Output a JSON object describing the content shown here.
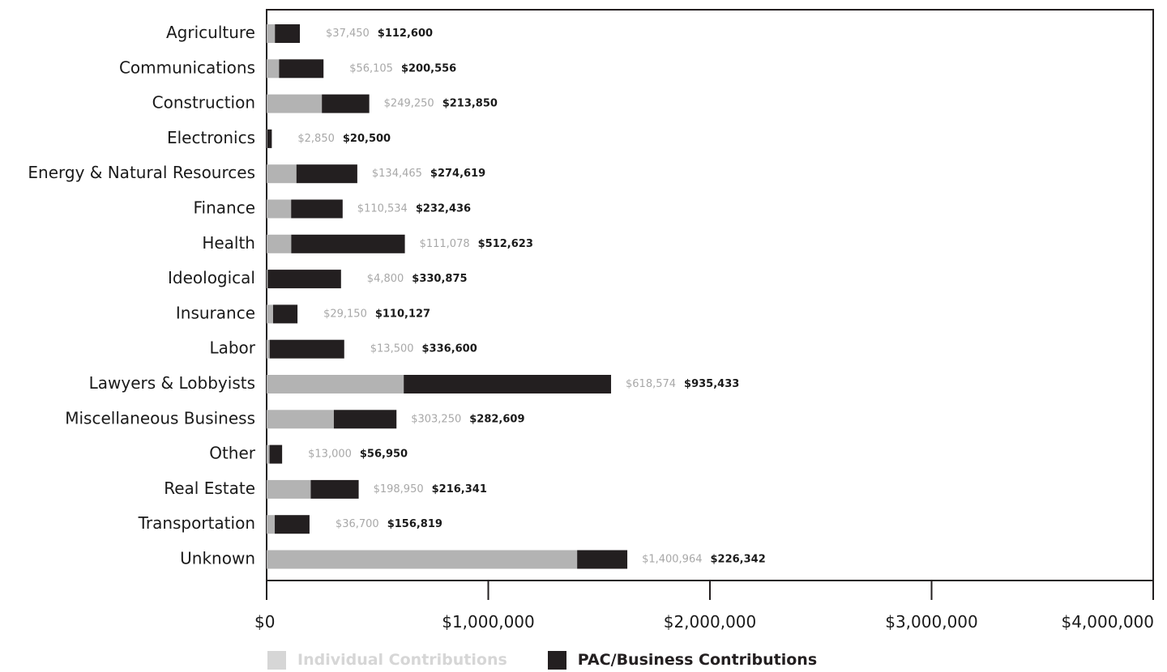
{
  "chart_data": {
    "type": "bar",
    "orientation": "horizontal",
    "stacked": true,
    "categories": [
      "Agriculture",
      "Communications",
      "Construction",
      "Electronics",
      "Energy & Natural Resources",
      "Finance",
      "Health",
      "Ideological",
      "Insurance",
      "Labor",
      "Lawyers & Lobbyists",
      "Miscellaneous Business",
      "Other",
      "Real Estate",
      "Transportation",
      "Unknown"
    ],
    "series": [
      {
        "name": "Individual Contributions",
        "color": "#b3b3b3",
        "legend_color": "#d6d6d6",
        "values": [
          37450,
          56105,
          249250,
          2850,
          134465,
          110534,
          111078,
          4800,
          29150,
          13500,
          618574,
          303250,
          13000,
          198950,
          36700,
          1400964
        ],
        "labels": [
          "$37,450",
          "$56,105",
          "$249,250",
          "$2,850",
          "$134,465",
          "$110,534",
          "$111,078",
          "$4,800",
          "$29,150",
          "$13,500",
          "$618,574",
          "$303,250",
          "$13,000",
          "$198,950",
          "$36,700",
          "$1,400,964"
        ]
      },
      {
        "name": "PAC/Business Contributions",
        "color": "#231f20",
        "legend_color": "#231f20",
        "values": [
          112600,
          200556,
          213850,
          20500,
          274619,
          232436,
          512623,
          330875,
          110127,
          336600,
          935433,
          282609,
          56950,
          216341,
          156819,
          226342
        ],
        "labels": [
          "$112,600",
          "$200,556",
          "$213,850",
          "$20,500",
          "$274,619",
          "$232,436",
          "$512,623",
          "$330,875",
          "$110,127",
          "$336,600",
          "$935,433",
          "$282,609",
          "$56,950",
          "$216,341",
          "$156,819",
          "$226,342"
        ]
      }
    ],
    "xlim": [
      0,
      4000000
    ],
    "x_ticks": [
      0,
      1000000,
      2000000,
      3000000,
      4000000
    ],
    "x_tick_labels": [
      "$0",
      "$1,000,000",
      "$2,000,000",
      "$3,000,000",
      "$4,000,000"
    ],
    "grid": false,
    "legend_position": "bottom",
    "ind_label_color": "#a8a8a8",
    "pac_label_color": "#1a1a1a"
  }
}
